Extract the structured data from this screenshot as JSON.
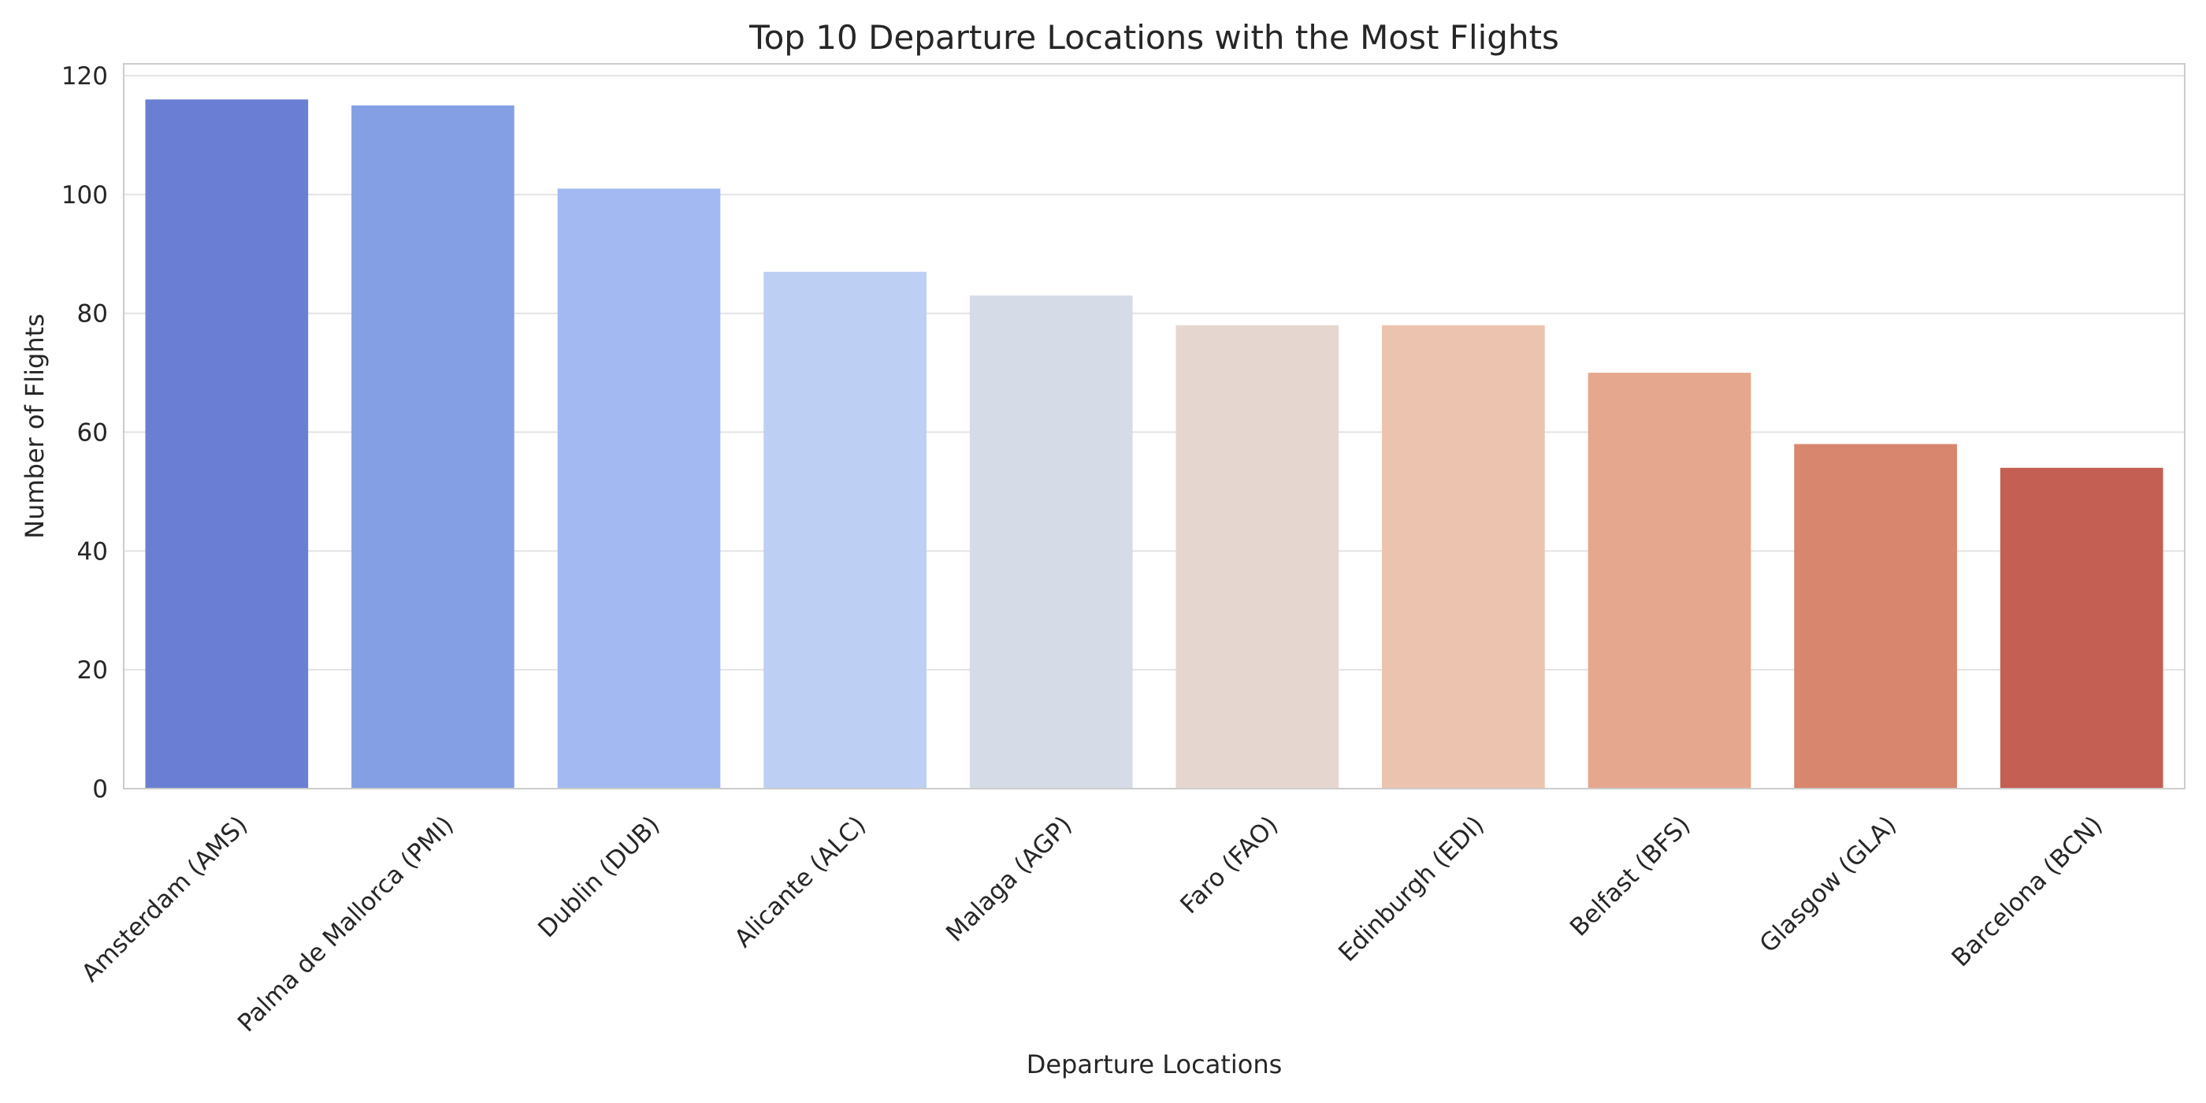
{
  "chart_data": {
    "type": "bar",
    "title": "Top 10 Departure Locations with the Most Flights",
    "xlabel": "Departure Locations",
    "ylabel": "Number of Flights",
    "categories": [
      "Amsterdam (AMS)",
      "Palma de Mallorca (PMI)",
      "Dublin (DUB)",
      "Alicante (ALC)",
      "Malaga (AGP)",
      "Faro (FAO)",
      "Edinburgh (EDI)",
      "Belfast (BFS)",
      "Glasgow (GLA)",
      "Barcelona (BCN)"
    ],
    "values": [
      116,
      115,
      101,
      87,
      83,
      78,
      78,
      70,
      58,
      54
    ],
    "colors": [
      "#6a7fd3",
      "#859fe4",
      "#a2baf1",
      "#bdcff2",
      "#d5dbe7",
      "#e5d7cf",
      "#ecc3ae",
      "#e5a78e",
      "#d9866f",
      "#c35f53"
    ],
    "ylim": [
      0,
      122
    ],
    "yticks": [
      0,
      20,
      40,
      60,
      80,
      100,
      120
    ],
    "grid": "y",
    "legend": "none"
  }
}
